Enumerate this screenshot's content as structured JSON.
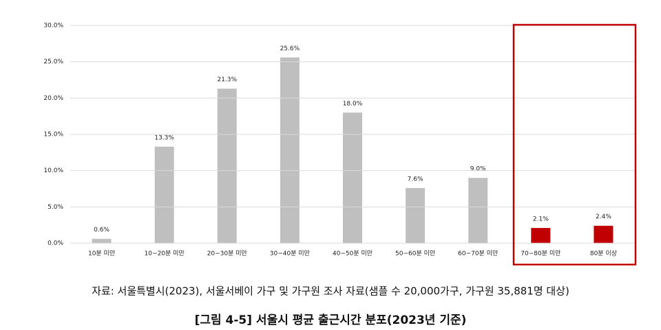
{
  "chart_data": {
    "type": "bar",
    "categories": [
      "10분 미만",
      "10~20분 미만",
      "20~30분 미만",
      "30~40분 미만",
      "40~50분 미만",
      "50~60분 미만",
      "60~70분 미만",
      "70~80분 미만",
      "80분 이상"
    ],
    "values": [
      0.6,
      13.3,
      21.3,
      25.6,
      18.0,
      7.6,
      9.0,
      2.1,
      2.4
    ],
    "value_labels": [
      "0.6%",
      "13.3%",
      "21.3%",
      "25.6%",
      "18.0%",
      "7.6%",
      "9.0%",
      "2.1%",
      "2.4%"
    ],
    "colors": [
      "#bfbfbf",
      "#bfbfbf",
      "#bfbfbf",
      "#bfbfbf",
      "#bfbfbf",
      "#bfbfbf",
      "#bfbfbf",
      "#c00000",
      "#c00000"
    ],
    "ylim": [
      0,
      30
    ],
    "yticks": [
      {
        "value": 0,
        "label": "0.0%"
      },
      {
        "value": 5,
        "label": "5.0%"
      },
      {
        "value": 10,
        "label": "10.0%"
      },
      {
        "value": 15,
        "label": "15.0%"
      },
      {
        "value": 20,
        "label": "20.0%"
      },
      {
        "value": 25,
        "label": "25.0%"
      },
      {
        "value": 30,
        "label": "30.0%"
      }
    ],
    "grid": true,
    "source": "자료: 서울특별시(2023), 서울서베이 가구 및 가구원 조사 자료(샘플 수 20,000가구, 가구원 35,881명 대상)",
    "caption": "[그림 4-5] 서울시 평균 출근시간 분포(2023년 기준)"
  }
}
